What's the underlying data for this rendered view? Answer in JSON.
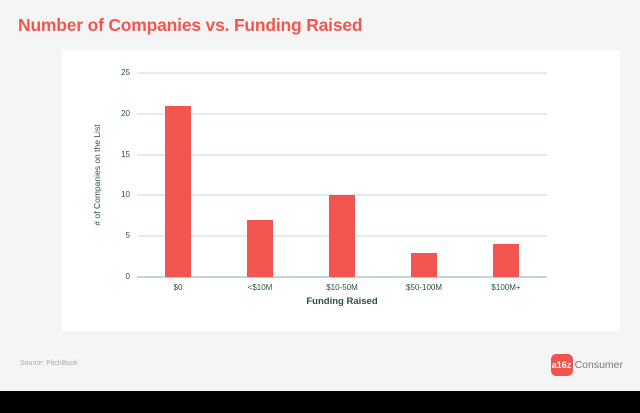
{
  "page": {
    "title": "Number of Companies vs. Funding Raised",
    "source": "Source: PitchBook",
    "logo": {
      "badge": "a16z",
      "wordmark": "Consumer"
    }
  },
  "colors": {
    "accent_coral": "#f4554e",
    "bar": "#f2544f",
    "axis_text": "#2d4f4b",
    "gridline": "#c3dad9",
    "zero_axis_line": "#8aacaa",
    "page_background": "#f4f6f6",
    "card_background": "#ffffff",
    "source_text": "#a6abb0",
    "logo_badge_bg": "#f0544f",
    "logo_wordmark_text": "#75797c",
    "bottom_bar": "#000000"
  },
  "chart_data": {
    "type": "bar",
    "title": "Number of Companies vs. Funding Raised",
    "categories": [
      "$0",
      "<$10M",
      "$10-50M",
      "$50-100M",
      "$100M+"
    ],
    "values": [
      21,
      7,
      10,
      3,
      4
    ],
    "xlabel": "Funding Raised",
    "ylabel": "# of Companies on the List",
    "ylim": [
      0,
      25
    ],
    "yticks": [
      0,
      5,
      10,
      15,
      20,
      25
    ],
    "grid": true,
    "legend": false,
    "bar_color": "#f2544f"
  }
}
